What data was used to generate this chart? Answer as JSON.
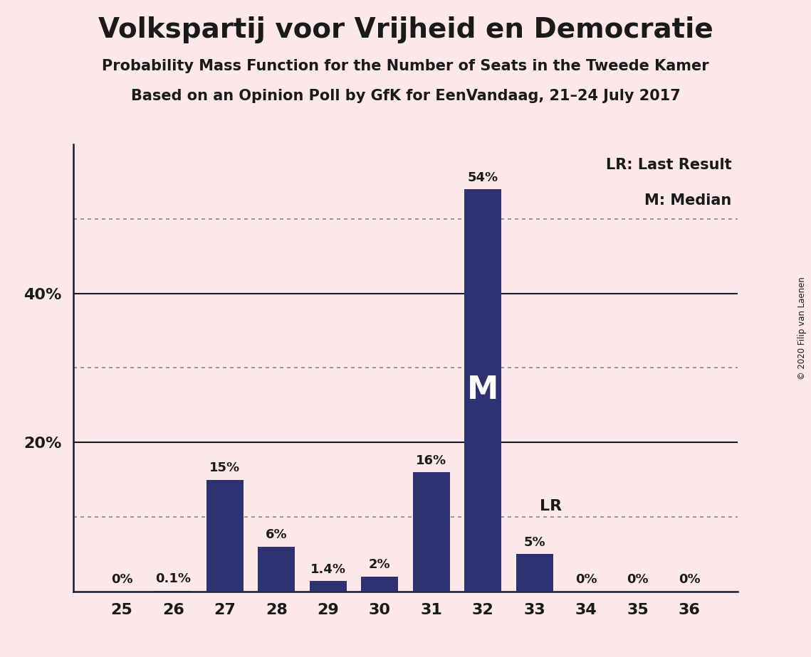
{
  "title": "Volkspartij voor Vrijheid en Democratie",
  "subtitle1": "Probability Mass Function for the Number of Seats in the Tweede Kamer",
  "subtitle2": "Based on an Opinion Poll by GfK for EenVandaag, 21–24 July 2017",
  "copyright": "© 2020 Filip van Laenen",
  "categories": [
    25,
    26,
    27,
    28,
    29,
    30,
    31,
    32,
    33,
    34,
    35,
    36
  ],
  "values": [
    0.0,
    0.1,
    15.0,
    6.0,
    1.4,
    2.0,
    16.0,
    54.0,
    5.0,
    0.0,
    0.0,
    0.0
  ],
  "labels": [
    "0%",
    "0.1%",
    "15%",
    "6%",
    "1.4%",
    "2%",
    "16%",
    "54%",
    "5%",
    "0%",
    "0%",
    "0%"
  ],
  "bar_color": "#2e3270",
  "background_color": "#fce8e8",
  "axis_line_color": "#1a1a2e",
  "text_color": "#1a1a1a",
  "grid_color_solid": "#1a1a2e",
  "grid_color_dotted": "#888888",
  "median_seat": 32,
  "lr_seat": 33,
  "median_label": "M",
  "lr_label": "LR",
  "legend_lr": "LR: Last Result",
  "legend_m": "M: Median",
  "solid_lines": [
    20,
    40
  ],
  "dotted_lines": [
    10,
    30,
    50
  ],
  "ylim": [
    0,
    60
  ],
  "ytick_positions": [
    20,
    40
  ],
  "ytick_labels": [
    "20%",
    "40%"
  ]
}
